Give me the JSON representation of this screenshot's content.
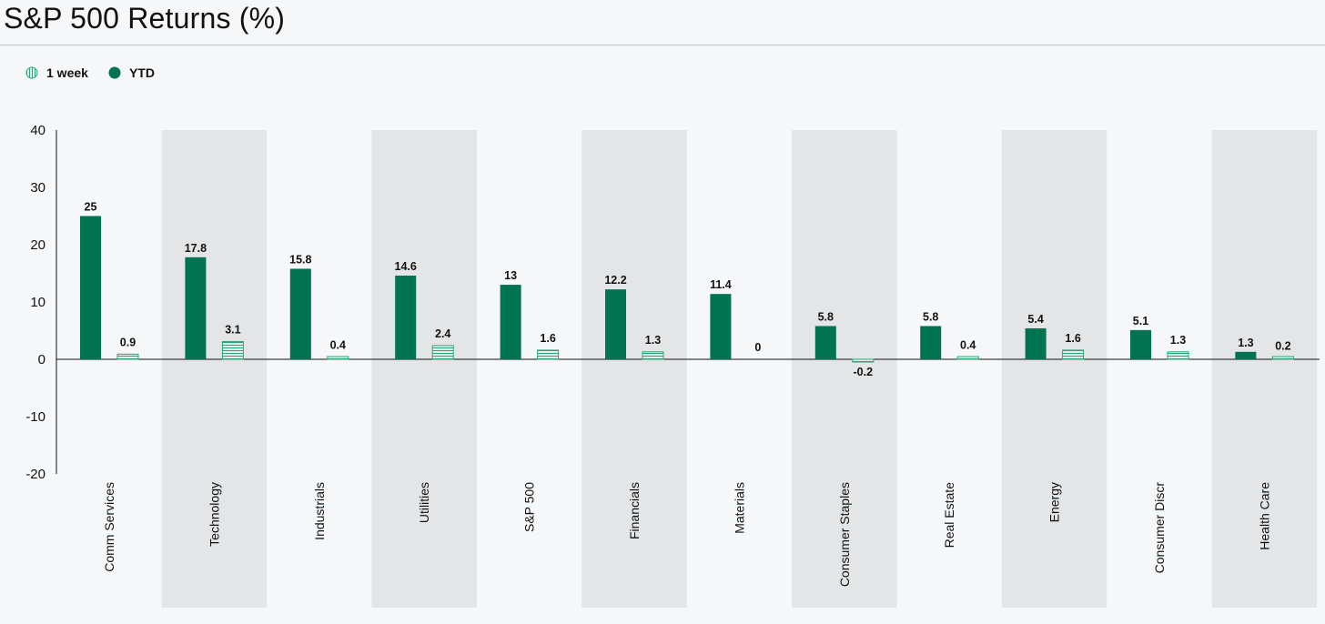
{
  "title": "S&P 500 Returns (%)",
  "legend": [
    {
      "label": "1 week",
      "icon": "hatched-circle-icon"
    },
    {
      "label": "YTD",
      "icon": "solid-circle-icon"
    }
  ],
  "colors": {
    "ytd": "#00744f",
    "week_fill": "#dff2ea",
    "week_line": "#2aa67a",
    "band": "#e3e5e7",
    "axis": "#111111"
  },
  "chart_data": {
    "type": "bar",
    "title": "S&P 500 Returns (%)",
    "xlabel": "",
    "ylabel": "",
    "ylim": [
      -20,
      40
    ],
    "yticks": [
      40,
      30,
      20,
      10,
      0,
      -10,
      -20
    ],
    "grid": false,
    "legend_position": "top-left",
    "categories": [
      "Comm Services",
      "Technology",
      "Industrials",
      "Utilities",
      "S&P 500",
      "Financials",
      "Materials",
      "Consumer Staples",
      "Real Estate",
      "Energy",
      "Consumer Discr",
      "Health Care"
    ],
    "series": [
      {
        "name": "YTD",
        "values": [
          25,
          17.8,
          15.8,
          14.6,
          13,
          12.2,
          11.4,
          5.8,
          5.8,
          5.4,
          5.1,
          1.3
        ]
      },
      {
        "name": "1 week",
        "values": [
          0.9,
          3.1,
          0.4,
          2.4,
          1.6,
          1.3,
          0,
          -0.2,
          0.4,
          1.6,
          1.3,
          0.2
        ]
      }
    ]
  }
}
